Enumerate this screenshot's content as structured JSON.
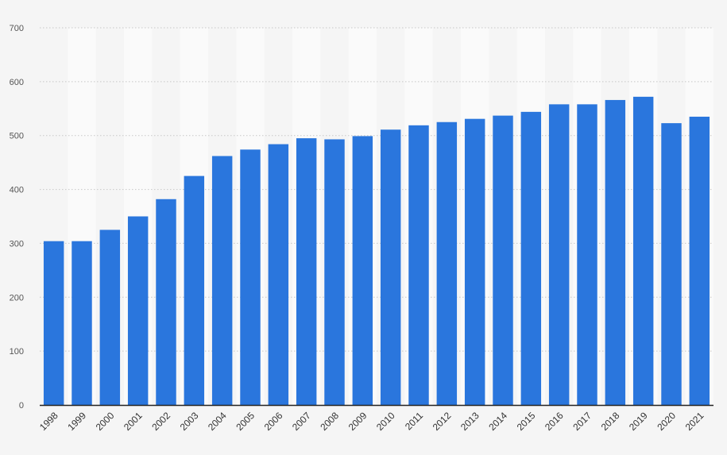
{
  "chart_data": {
    "type": "bar",
    "title": "",
    "xlabel": "",
    "ylabel": "",
    "categories": [
      "1998",
      "1999",
      "2000",
      "2001",
      "2002",
      "2003",
      "2004",
      "2005",
      "2006",
      "2007",
      "2008",
      "2009",
      "2010",
      "2011",
      "2012",
      "2013",
      "2014",
      "2015",
      "2016",
      "2017",
      "2018",
      "2019",
      "2020",
      "2021"
    ],
    "values": [
      304,
      304,
      325,
      350,
      382,
      425,
      462,
      474,
      484,
      495,
      493,
      499,
      511,
      519,
      525,
      531,
      537,
      544,
      558,
      558,
      566,
      572,
      523,
      535
    ],
    "ylim": [
      0,
      700
    ],
    "yticks": [
      0,
      100,
      200,
      300,
      400,
      500,
      600,
      700
    ],
    "grid": true,
    "grid_style": "dotted horizontal",
    "alternating_column_bands": true,
    "bar_color": "#2a76dd",
    "background_color": "#f5f5f5",
    "band_color": "#fafafa",
    "legend": "none"
  }
}
